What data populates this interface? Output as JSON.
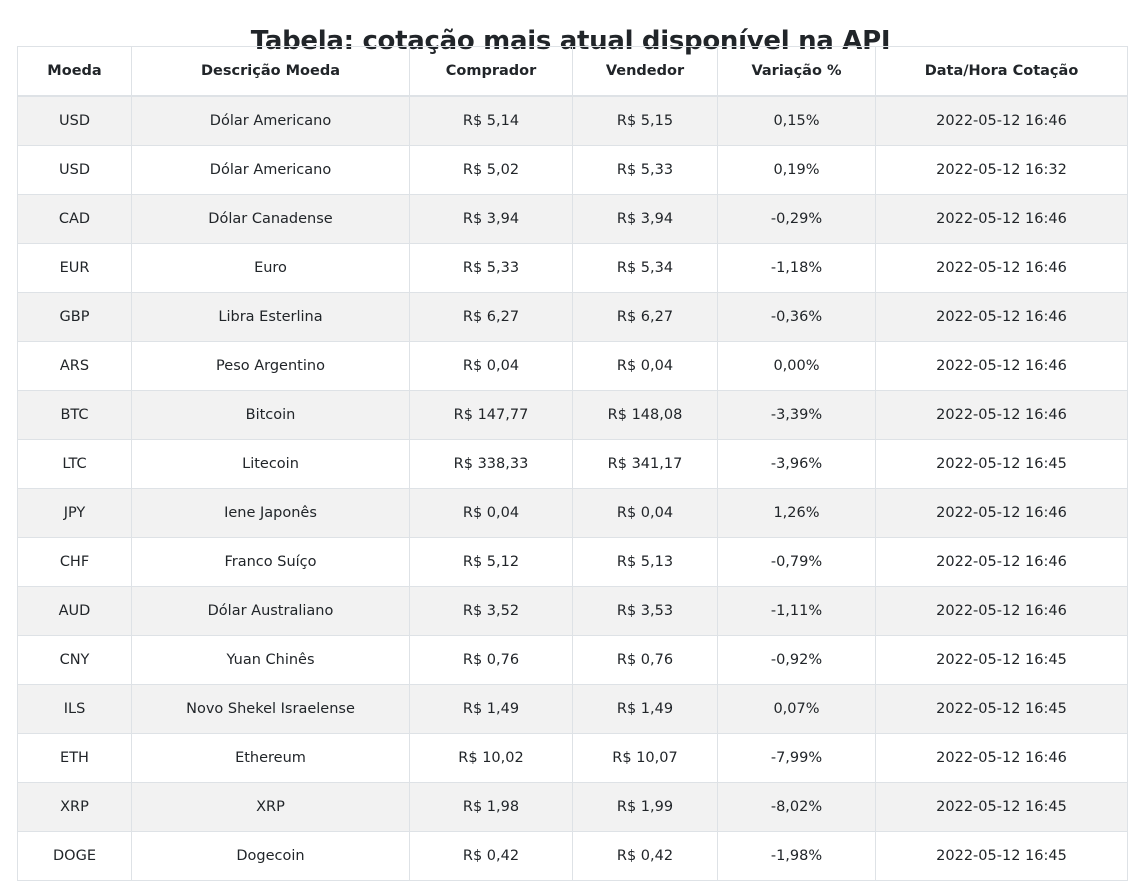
{
  "page": {
    "title": "Tabela: cotação mais atual disponível na API"
  },
  "table": {
    "headers": [
      "Moeda",
      "Descrição Moeda",
      "Comprador",
      "Vendedor",
      "Variação %",
      "Data/Hora Cotação"
    ],
    "rows": [
      [
        "USD",
        "Dólar Americano",
        "R$ 5,14",
        "R$ 5,15",
        "0,15%",
        "2022-05-12 16:46"
      ],
      [
        "USD",
        "Dólar Americano",
        "R$ 5,02",
        "R$ 5,33",
        "0,19%",
        "2022-05-12 16:32"
      ],
      [
        "CAD",
        "Dólar Canadense",
        "R$ 3,94",
        "R$ 3,94",
        "-0,29%",
        "2022-05-12 16:46"
      ],
      [
        "EUR",
        "Euro",
        "R$ 5,33",
        "R$ 5,34",
        "-1,18%",
        "2022-05-12 16:46"
      ],
      [
        "GBP",
        "Libra Esterlina",
        "R$ 6,27",
        "R$ 6,27",
        "-0,36%",
        "2022-05-12 16:46"
      ],
      [
        "ARS",
        "Peso Argentino",
        "R$ 0,04",
        "R$ 0,04",
        "0,00%",
        "2022-05-12 16:46"
      ],
      [
        "BTC",
        "Bitcoin",
        "R$ 147,77",
        "R$ 148,08",
        "-3,39%",
        "2022-05-12 16:46"
      ],
      [
        "LTC",
        "Litecoin",
        "R$ 338,33",
        "R$ 341,17",
        "-3,96%",
        "2022-05-12 16:45"
      ],
      [
        "JPY",
        "Iene Japonês",
        "R$ 0,04",
        "R$ 0,04",
        "1,26%",
        "2022-05-12 16:46"
      ],
      [
        "CHF",
        "Franco Suíço",
        "R$ 5,12",
        "R$ 5,13",
        "-0,79%",
        "2022-05-12 16:46"
      ],
      [
        "AUD",
        "Dólar Australiano",
        "R$ 3,52",
        "R$ 3,53",
        "-1,11%",
        "2022-05-12 16:46"
      ],
      [
        "CNY",
        "Yuan Chinês",
        "R$ 0,76",
        "R$ 0,76",
        "-0,92%",
        "2022-05-12 16:45"
      ],
      [
        "ILS",
        "Novo Shekel Israelense",
        "R$ 1,49",
        "R$ 1,49",
        "0,07%",
        "2022-05-12 16:45"
      ],
      [
        "ETH",
        "Ethereum",
        "R$ 10,02",
        "R$ 10,07",
        "-7,99%",
        "2022-05-12 16:46"
      ],
      [
        "XRP",
        "XRP",
        "R$ 1,98",
        "R$ 1,99",
        "-8,02%",
        "2022-05-12 16:45"
      ],
      [
        "DOGE",
        "Dogecoin",
        "R$ 0,42",
        "R$ 0,42",
        "-1,98%",
        "2022-05-12 16:45"
      ]
    ]
  },
  "colors": {
    "text": "#212529",
    "border": "#dee2e6",
    "stripe": "#f2f2f2",
    "background": "#ffffff"
  }
}
